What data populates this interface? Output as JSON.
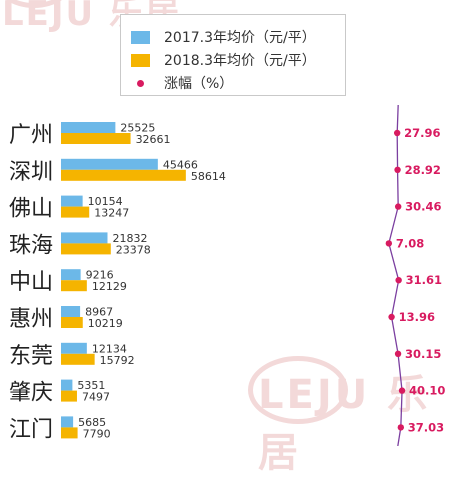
{
  "watermark": {
    "brand": "LEJU",
    "name": "乐居"
  },
  "legend": {
    "items": [
      {
        "label": "2017.3年均价（元/平）",
        "color": "#6cb8e8",
        "kind": "bar"
      },
      {
        "label": "2018.3年均价（元/平）",
        "color": "#f5b400",
        "kind": "bar"
      },
      {
        "label": "涨幅（%）",
        "color": "#d81b60",
        "kind": "dot"
      }
    ]
  },
  "chart_data": {
    "type": "bar",
    "orientation": "horizontal",
    "categories": [
      "广州",
      "深圳",
      "佛山",
      "珠海",
      "中山",
      "惠州",
      "东莞",
      "肇庆",
      "江门"
    ],
    "series": [
      {
        "name": "2017.3年均价（元/平）",
        "color": "#6cb8e8",
        "values": [
          25525,
          45466,
          10154,
          21832,
          9216,
          8967,
          12134,
          5351,
          5685
        ]
      },
      {
        "name": "2018.3年均价（元/平）",
        "color": "#f5b400",
        "values": [
          32661,
          58614,
          13247,
          23378,
          12129,
          10219,
          15792,
          7497,
          7790
        ]
      },
      {
        "name": "涨幅（%）",
        "type": "line",
        "color": "#d81b60",
        "line_color": "#7b3fa0",
        "values": [
          27.96,
          28.92,
          30.46,
          7.08,
          31.61,
          13.96,
          30.15,
          40.1,
          37.03
        ],
        "labels": [
          "27.96",
          "28.92",
          "30.46",
          "7.08",
          "31.61",
          "13.96",
          "30.15",
          "40.10",
          "37.03"
        ]
      }
    ],
    "grid": false,
    "legend_position": "top-center"
  }
}
